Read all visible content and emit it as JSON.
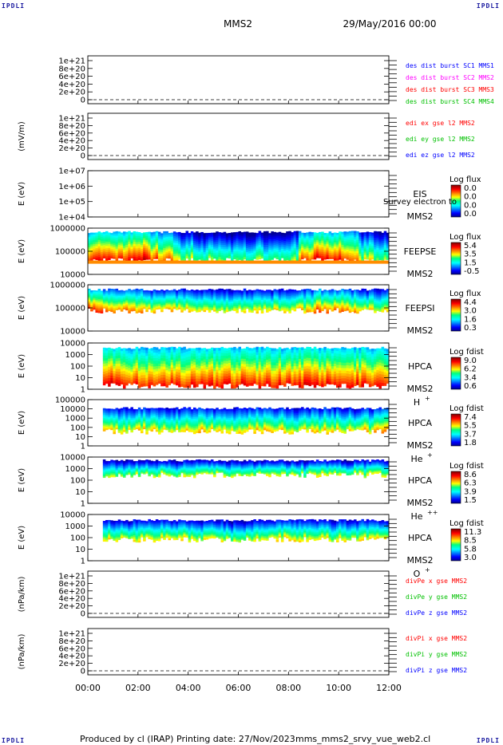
{
  "corner_mark": "IPDLI",
  "header": {
    "spacecraft": "MMS2",
    "date": "29/May/2016 00:00"
  },
  "footer": {
    "produced_by": "Produced by cl (IRAP)",
    "printing_date": "Printing date: 27/Nov/2023",
    "script": "mms_mms2_srvy_vue_web2.cl"
  },
  "time_ticks": [
    "00:00",
    "02:00",
    "04:00",
    "06:00",
    "08:00",
    "10:00",
    "12:00"
  ],
  "colors": {
    "c1": "#0000ff",
    "c2": "#ff00ff",
    "c3": "#ff0000",
    "c4": "#00c000",
    "x_component": "#ff0000",
    "y_component": "#00c000",
    "z_component": "#0000ff"
  },
  "chart_data": [
    {
      "type": "line",
      "panel": "des_dist",
      "ylabel": "",
      "yticks": [
        "1e+21",
        "8e+20",
        "6e+20",
        "4e+20",
        "2e+20",
        "0"
      ],
      "series": [
        {
          "name": "des dist burst SC1 MMS1",
          "values": [
            0,
            0,
            0,
            0,
            0,
            0,
            0
          ]
        },
        {
          "name": "des dist burst SC2 MMS2",
          "values": [
            0,
            0,
            0,
            0,
            0,
            0,
            0
          ]
        },
        {
          "name": "des dist burst SC3 MMS3",
          "values": [
            0,
            0,
            0,
            0,
            0,
            0,
            0
          ]
        },
        {
          "name": "des dist burst SC4 MMS4",
          "values": [
            0,
            0,
            0,
            0,
            0,
            0,
            0
          ]
        }
      ]
    },
    {
      "type": "line",
      "panel": "edi",
      "ylabel": "(mV/m)",
      "yticks": [
        "1e+21",
        "8e+20",
        "6e+20",
        "4e+20",
        "2e+20",
        "0"
      ],
      "series": [
        {
          "name": "edi ex gse l2 MMS2",
          "values": [
            0,
            0,
            0,
            0,
            0,
            0,
            0
          ]
        },
        {
          "name": "edi ey gse l2 MMS2",
          "values": [
            0,
            0,
            0,
            0,
            0,
            0,
            0
          ]
        },
        {
          "name": "edi ez gse l2 MMS2",
          "values": [
            0,
            0,
            0,
            0,
            0,
            0,
            0
          ]
        }
      ]
    },
    {
      "type": "heatmap",
      "panel": "eis",
      "ylabel": "E (eV)",
      "yticks": [
        "1e+07",
        "1e+06",
        "1e+05",
        "1e+04"
      ],
      "instrument": "EIS",
      "subtitle": "Survey electron to",
      "spacecraft": "MMS2",
      "cbar_title": "Log flux",
      "cbar_ticks": [
        "0.0",
        "0.0",
        "0.0",
        "0.0"
      ],
      "profile": []
    },
    {
      "type": "heatmap",
      "panel": "feeps_e",
      "ylabel": "E (eV)",
      "yticks": [
        "1000000",
        "100000",
        "10000"
      ],
      "instrument": "FEEPSE",
      "spacecraft": "MMS2",
      "cbar_title": "Log flux",
      "cbar_ticks": [
        "5.4",
        "3.5",
        "1.5",
        "-0.5"
      ],
      "profile": [
        0.62,
        0.58,
        0.6,
        0.66,
        0.55,
        0.5,
        0.35,
        0.3,
        0.3,
        0.28,
        0.28,
        0.3,
        0.3,
        0.32,
        0.52,
        0.62,
        0.6,
        0.5,
        0.38,
        0.3
      ]
    },
    {
      "type": "heatmap",
      "panel": "feeps_i",
      "ylabel": "E (eV)",
      "yticks": [
        "1000000",
        "100000",
        "10000"
      ],
      "instrument": "FEEPSI",
      "spacecraft": "MMS2",
      "cbar_title": "Log flux",
      "cbar_ticks": [
        "4.4",
        "3.0",
        "1.6",
        "0.3"
      ],
      "profile": [
        0.55,
        0.5,
        0.48,
        0.5,
        0.45,
        0.42,
        0.4,
        0.38,
        0.38,
        0.36,
        0.36,
        0.38,
        0.38,
        0.4,
        0.45,
        0.52,
        0.5,
        0.45,
        0.4,
        0.38
      ]
    },
    {
      "type": "heatmap",
      "panel": "hpca_h",
      "ylabel": "E (eV)",
      "yticks": [
        "10000",
        "1000",
        "100",
        "10",
        "1"
      ],
      "instrument": "HPCA",
      "spacecraft": "MMS2",
      "species": "H",
      "charge": "+",
      "cbar_title": "Log fdist",
      "cbar_ticks": [
        "9.0",
        "6.2",
        "3.4",
        "0.6"
      ],
      "profile": [
        0.6,
        0.62,
        0.6,
        0.58,
        0.6,
        0.6,
        0.58,
        0.6,
        0.62,
        0.6,
        0.6,
        0.58,
        0.6,
        0.6,
        0.62,
        0.6,
        0.58,
        0.6,
        0.6,
        0.6
      ]
    },
    {
      "type": "heatmap",
      "panel": "hpca_he1",
      "ylabel": "E (eV)",
      "yticks": [
        "100000",
        "10000",
        "1000",
        "100",
        "10",
        "1"
      ],
      "instrument": "HPCA",
      "spacecraft": "MMS2",
      "species": "He",
      "charge": "+",
      "cbar_title": "Log fdist",
      "cbar_ticks": [
        "7.4",
        "5.5",
        "3.7",
        "1.8"
      ],
      "profile": [
        0.45,
        0.42,
        0.4,
        0.42,
        0.4,
        0.38,
        0.4,
        0.42,
        0.4,
        0.38,
        0.4,
        0.42,
        0.4,
        0.38,
        0.4,
        0.42,
        0.4,
        0.38,
        0.42,
        0.45
      ]
    },
    {
      "type": "heatmap",
      "panel": "hpca_he2",
      "ylabel": "E (eV)",
      "yticks": [
        "10000",
        "1000",
        "100",
        "10",
        "1"
      ],
      "instrument": "HPCA",
      "spacecraft": "MMS2",
      "species": "He",
      "charge": "++",
      "cbar_title": "Log fdist",
      "cbar_ticks": [
        "8.6",
        "6.3",
        "3.9",
        "1.5"
      ],
      "profile": [
        0.35,
        0.34,
        0.33,
        0.35,
        0.34,
        0.33,
        0.35,
        0.34,
        0.33,
        0.35,
        0.34,
        0.33,
        0.35,
        0.34,
        0.33,
        0.35,
        0.34,
        0.33,
        0.35,
        0.34
      ]
    },
    {
      "type": "heatmap",
      "panel": "hpca_o",
      "ylabel": "E (eV)",
      "yticks": [
        "10000",
        "1000",
        "100",
        "10",
        "1"
      ],
      "instrument": "HPCA",
      "spacecraft": "MMS2",
      "species": "O",
      "charge": "+",
      "cbar_title": "Log fdist",
      "cbar_ticks": [
        "11.3",
        "8.5",
        "5.8",
        "3.0"
      ],
      "profile": [
        0.4,
        0.38,
        0.36,
        0.38,
        0.4,
        0.4,
        0.38,
        0.36,
        0.36,
        0.34,
        0.34,
        0.36,
        0.38,
        0.4,
        0.4,
        0.38,
        0.36,
        0.38,
        0.4,
        0.4
      ]
    },
    {
      "type": "line",
      "panel": "divpe",
      "ylabel": "(nPa/km)",
      "yticks": [
        "1e+21",
        "8e+20",
        "6e+20",
        "4e+20",
        "2e+20",
        "0"
      ],
      "series": [
        {
          "name": "divPe x gse MMS2",
          "values": [
            0,
            0,
            0,
            0,
            0,
            0,
            0
          ]
        },
        {
          "name": "divPe y gse MMS2",
          "values": [
            0,
            0,
            0,
            0,
            0,
            0,
            0
          ]
        },
        {
          "name": "divPe z gse MMS2",
          "values": [
            0,
            0,
            0,
            0,
            0,
            0,
            0
          ]
        }
      ]
    },
    {
      "type": "line",
      "panel": "divpi",
      "ylabel": "(nPa/km)",
      "yticks": [
        "1e+21",
        "8e+20",
        "6e+20",
        "4e+20",
        "2e+20",
        "0"
      ],
      "series": [
        {
          "name": "divPi x gse MMS2",
          "values": [
            0,
            0,
            0,
            0,
            0,
            0,
            0
          ]
        },
        {
          "name": "divPi y gse MMS2",
          "values": [
            0,
            0,
            0,
            0,
            0,
            0,
            0
          ]
        },
        {
          "name": "divPi z gse MMS2",
          "values": [
            0,
            0,
            0,
            0,
            0,
            0,
            0
          ]
        }
      ]
    }
  ]
}
